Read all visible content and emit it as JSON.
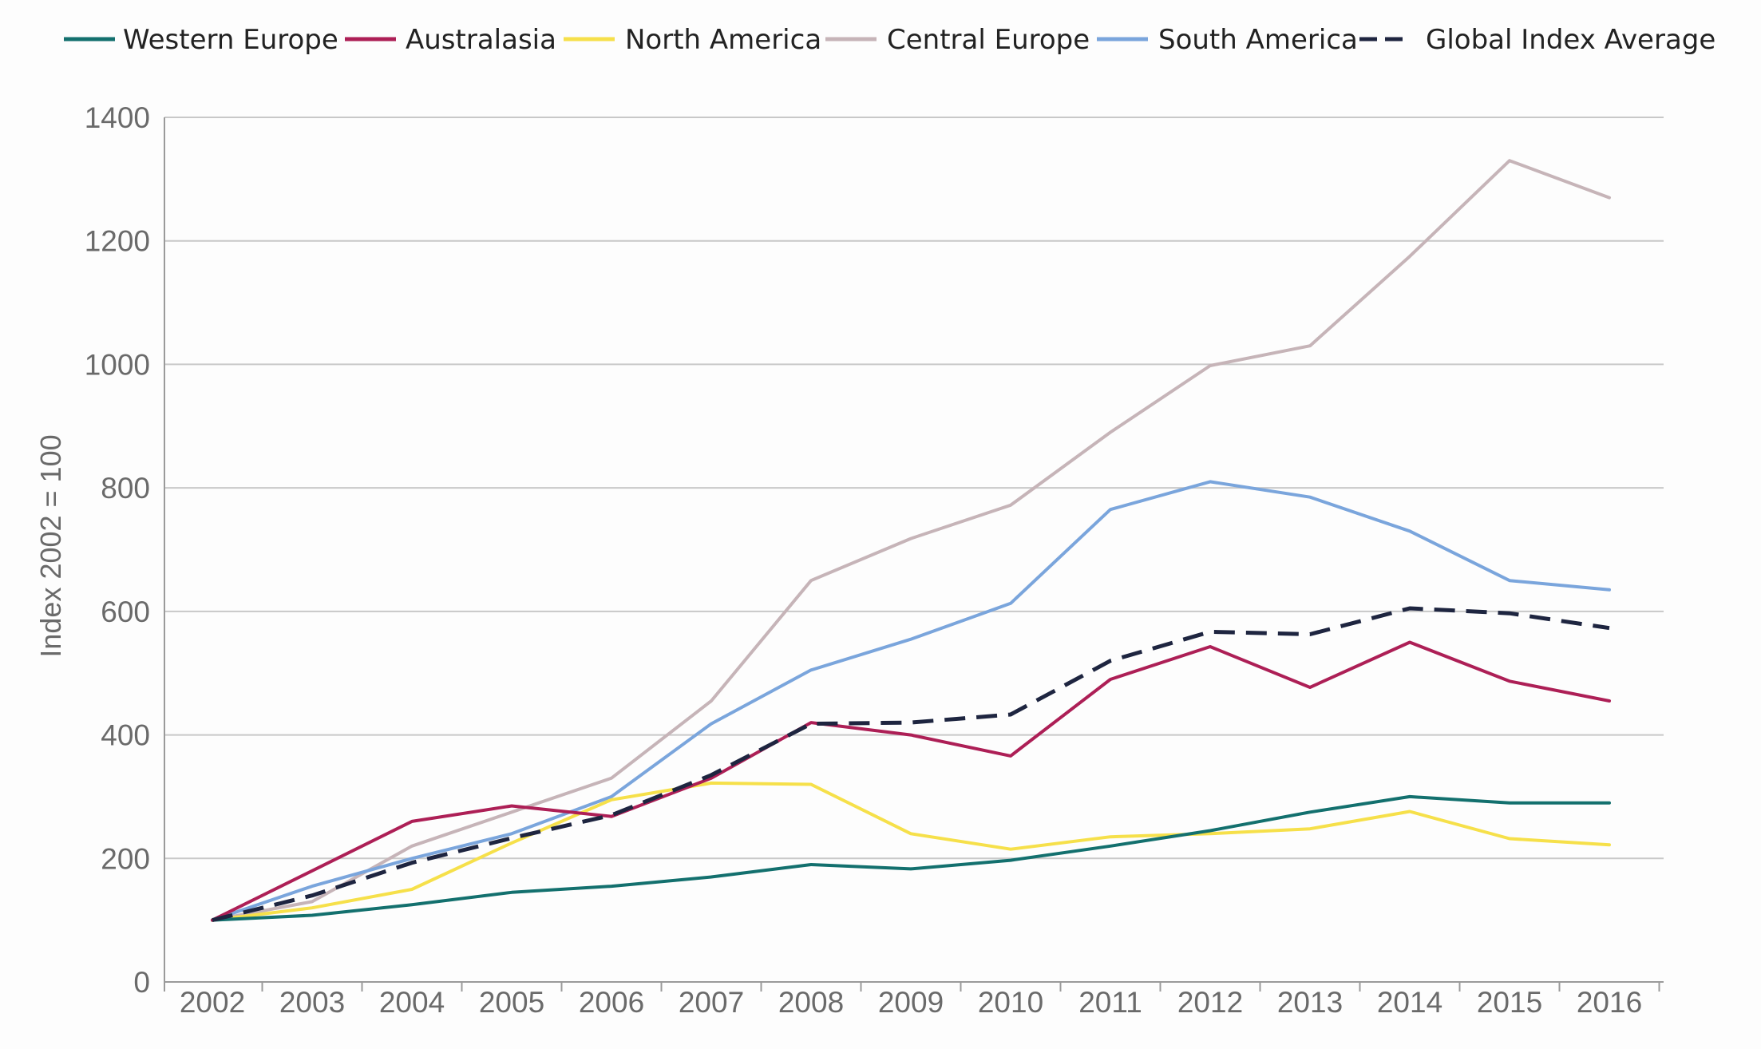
{
  "chart_data": {
    "type": "line",
    "title": "",
    "xlabel": "",
    "ylabel": "Index 2002 = 100",
    "x": [
      "2002",
      "2003",
      "2004",
      "2005",
      "2006",
      "2007",
      "2008",
      "2009",
      "2010",
      "2011",
      "2012",
      "2013",
      "2014",
      "2015",
      "2016"
    ],
    "ylim": [
      0,
      1400
    ],
    "yticks": [
      "0",
      "200",
      "400",
      "600",
      "800",
      "1000",
      "1200",
      "1400"
    ],
    "grid": true,
    "legend_position": "top",
    "series": [
      {
        "name": "Western Europe",
        "color": "#13706e",
        "dashed": false,
        "values": [
          100,
          108,
          125,
          145,
          155,
          170,
          190,
          183,
          197,
          220,
          245,
          275,
          300,
          290,
          290
        ]
      },
      {
        "name": "Australasia",
        "color": "#ad1f56",
        "dashed": false,
        "values": [
          100,
          180,
          260,
          285,
          268,
          330,
          420,
          400,
          366,
          490,
          543,
          477,
          550,
          487,
          455
        ]
      },
      {
        "name": "North America",
        "color": "#f6e04a",
        "dashed": false,
        "values": [
          100,
          120,
          150,
          225,
          295,
          322,
          320,
          240,
          215,
          235,
          240,
          248,
          276,
          232,
          222
        ]
      },
      {
        "name": "Central Europe",
        "color": "#c6b4b8",
        "dashed": false,
        "values": [
          100,
          130,
          220,
          275,
          330,
          455,
          650,
          718,
          772,
          890,
          998,
          1030,
          1175,
          1330,
          1270
        ]
      },
      {
        "name": "South America",
        "color": "#7aa5dc",
        "dashed": false,
        "values": [
          100,
          155,
          200,
          240,
          300,
          418,
          505,
          555,
          613,
          765,
          810,
          785,
          730,
          650,
          635
        ]
      },
      {
        "name": "Global Index Average",
        "color": "#1e2540",
        "dashed": true,
        "values": [
          100,
          140,
          193,
          233,
          270,
          335,
          418,
          420,
          433,
          520,
          567,
          563,
          605,
          597,
          573
        ]
      }
    ]
  }
}
